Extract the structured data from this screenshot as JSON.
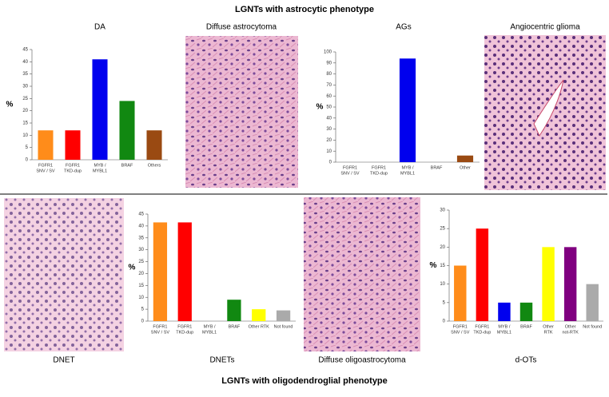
{
  "header": {
    "top": "LGNTs with astrocytic phenotype",
    "bottom": "LGNTs with oligodendroglial phenotype"
  },
  "images": [
    {
      "label": "Diffuse astrocytoma"
    },
    {
      "label": "Angiocentric glioma"
    },
    {
      "label": "DNET"
    },
    {
      "label": "Diffuse oligoastrocytoma"
    }
  ],
  "chart_data": [
    {
      "type": "bar",
      "title": "DA",
      "ylabel": "%",
      "categories": [
        [
          "FGFR1",
          "SNV / SV"
        ],
        [
          "FGFR1",
          "TKD-dup"
        ],
        [
          "MYB /",
          "MYBL1"
        ],
        [
          "BRAF"
        ],
        [
          "Others"
        ]
      ],
      "values": [
        12,
        12,
        41,
        24,
        12
      ],
      "colors": [
        "#ff8c1a",
        "#ff0000",
        "#0000ee",
        "#118811",
        "#9a4a12"
      ],
      "ylim": [
        0,
        45
      ],
      "yticks": [
        0,
        5,
        10,
        15,
        20,
        25,
        30,
        35,
        40,
        45
      ]
    },
    {
      "type": "bar",
      "title": "AGs",
      "ylabel": "%",
      "categories": [
        [
          "FGFR1",
          "SNV / SV"
        ],
        [
          "FGFR1",
          "TKD-dup"
        ],
        [
          "MYB /",
          "MYBL1"
        ],
        [
          "BRAF"
        ],
        [
          "Other"
        ]
      ],
      "values": [
        0,
        0,
        94,
        0,
        6
      ],
      "colors": [
        "#ff8c1a",
        "#ff0000",
        "#0000ee",
        "#118811",
        "#9a4a12"
      ],
      "ylim": [
        0,
        100
      ],
      "yticks": [
        0,
        10,
        20,
        30,
        40,
        50,
        60,
        70,
        80,
        90,
        100
      ]
    },
    {
      "type": "bar",
      "title": "DNETs",
      "ylabel": "%",
      "categories": [
        [
          "FGFR1",
          "SNV / SV"
        ],
        [
          "FGFR1",
          "TKD-dup"
        ],
        [
          "MYB /",
          "MYBL1"
        ],
        [
          "BRAF"
        ],
        [
          "Other RTK"
        ],
        [
          "Not found"
        ]
      ],
      "values": [
        41.5,
        41.5,
        0,
        9,
        5,
        4.5
      ],
      "colors": [
        "#ff8c1a",
        "#ff0000",
        "#0000ee",
        "#118811",
        "#ffff00",
        "#aaaaaa"
      ],
      "ylim": [
        0,
        45
      ],
      "yticks": [
        0,
        5,
        10,
        15,
        20,
        25,
        30,
        35,
        40,
        45
      ]
    },
    {
      "type": "bar",
      "title": "d-OTs",
      "ylabel": "%",
      "categories": [
        [
          "FGFR1",
          "SNV / SV"
        ],
        [
          "FGFR1",
          "TKD-dup"
        ],
        [
          "MYB /",
          "MYBL1"
        ],
        [
          "BRAF"
        ],
        [
          "Other",
          "RTK"
        ],
        [
          "Other",
          "not-RTK"
        ],
        [
          "Not found"
        ]
      ],
      "values": [
        15,
        25,
        5,
        5,
        20,
        20,
        10
      ],
      "colors": [
        "#ff8c1a",
        "#ff0000",
        "#0000ee",
        "#118811",
        "#ffff00",
        "#800080",
        "#aaaaaa"
      ],
      "ylim": [
        0,
        30
      ],
      "yticks": [
        0,
        5,
        10,
        15,
        20,
        25,
        30
      ]
    }
  ]
}
